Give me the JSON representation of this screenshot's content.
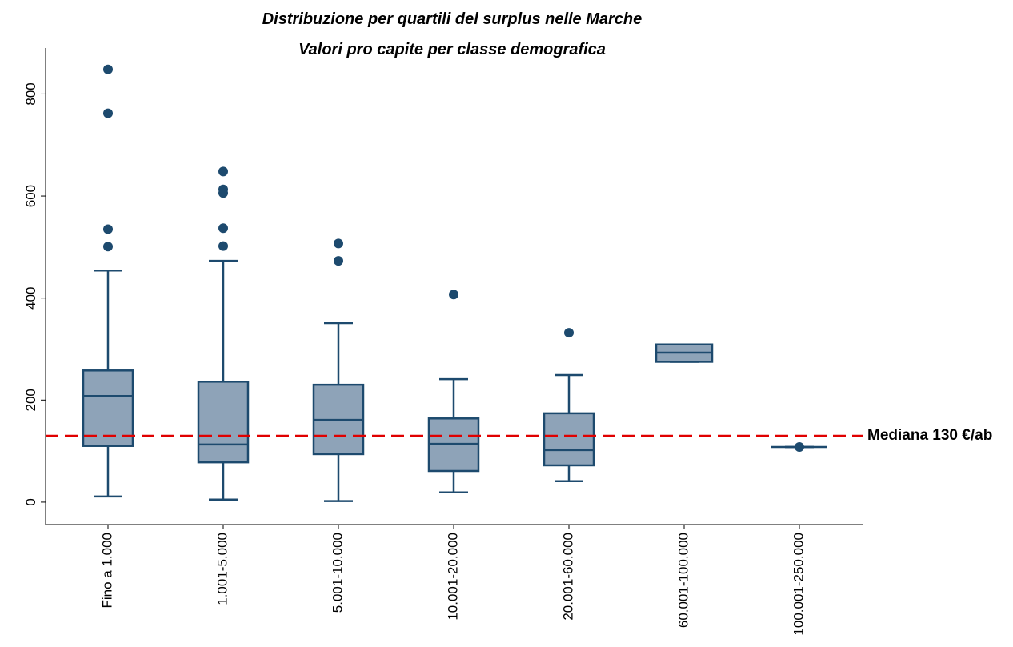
{
  "chart_data": {
    "type": "box",
    "title": "Distribuzione per quartili del surplus nelle Marche",
    "subtitle": "Valori pro capite per classe demografica",
    "categories": [
      "Fino a 1.000",
      "1.001-5.000",
      "5.001-10.000",
      "10.001-20.000",
      "20.001-60.000",
      "60.001-100.000",
      "100.001-250.000"
    ],
    "boxes": [
      {
        "min": 11,
        "q1": 110,
        "median": 208,
        "q3": 258,
        "max": 454,
        "outliers": [
          848,
          762,
          535,
          501
        ]
      },
      {
        "min": 5,
        "q1": 78,
        "median": 113,
        "q3": 236,
        "max": 473,
        "outliers": [
          648,
          613,
          606,
          537,
          502
        ]
      },
      {
        "min": 2,
        "q1": 94,
        "median": 161,
        "q3": 230,
        "max": 351,
        "outliers": [
          507,
          473
        ]
      },
      {
        "min": 19,
        "q1": 61,
        "median": 114,
        "q3": 164,
        "max": 241,
        "outliers": [
          407
        ]
      },
      {
        "min": 41,
        "q1": 72,
        "median": 102,
        "q3": 174,
        "max": 249,
        "outliers": [
          332
        ]
      },
      {
        "min": 275,
        "q1": 275,
        "median": 293,
        "q3": 309,
        "max": 309,
        "outliers": []
      },
      {
        "min": 108,
        "q1": 108,
        "median": 108,
        "q3": 108,
        "max": 108,
        "outliers": [
          108
        ]
      }
    ],
    "color": "#8ea3b8",
    "edge_color": "#1d4a6e",
    "reference_line": {
      "value": 130,
      "label": "Mediana 130 €/ab",
      "color": "#e00000"
    },
    "ylim": [
      -44,
      890
    ],
    "yticks": [
      0,
      200,
      400,
      600,
      800
    ]
  }
}
